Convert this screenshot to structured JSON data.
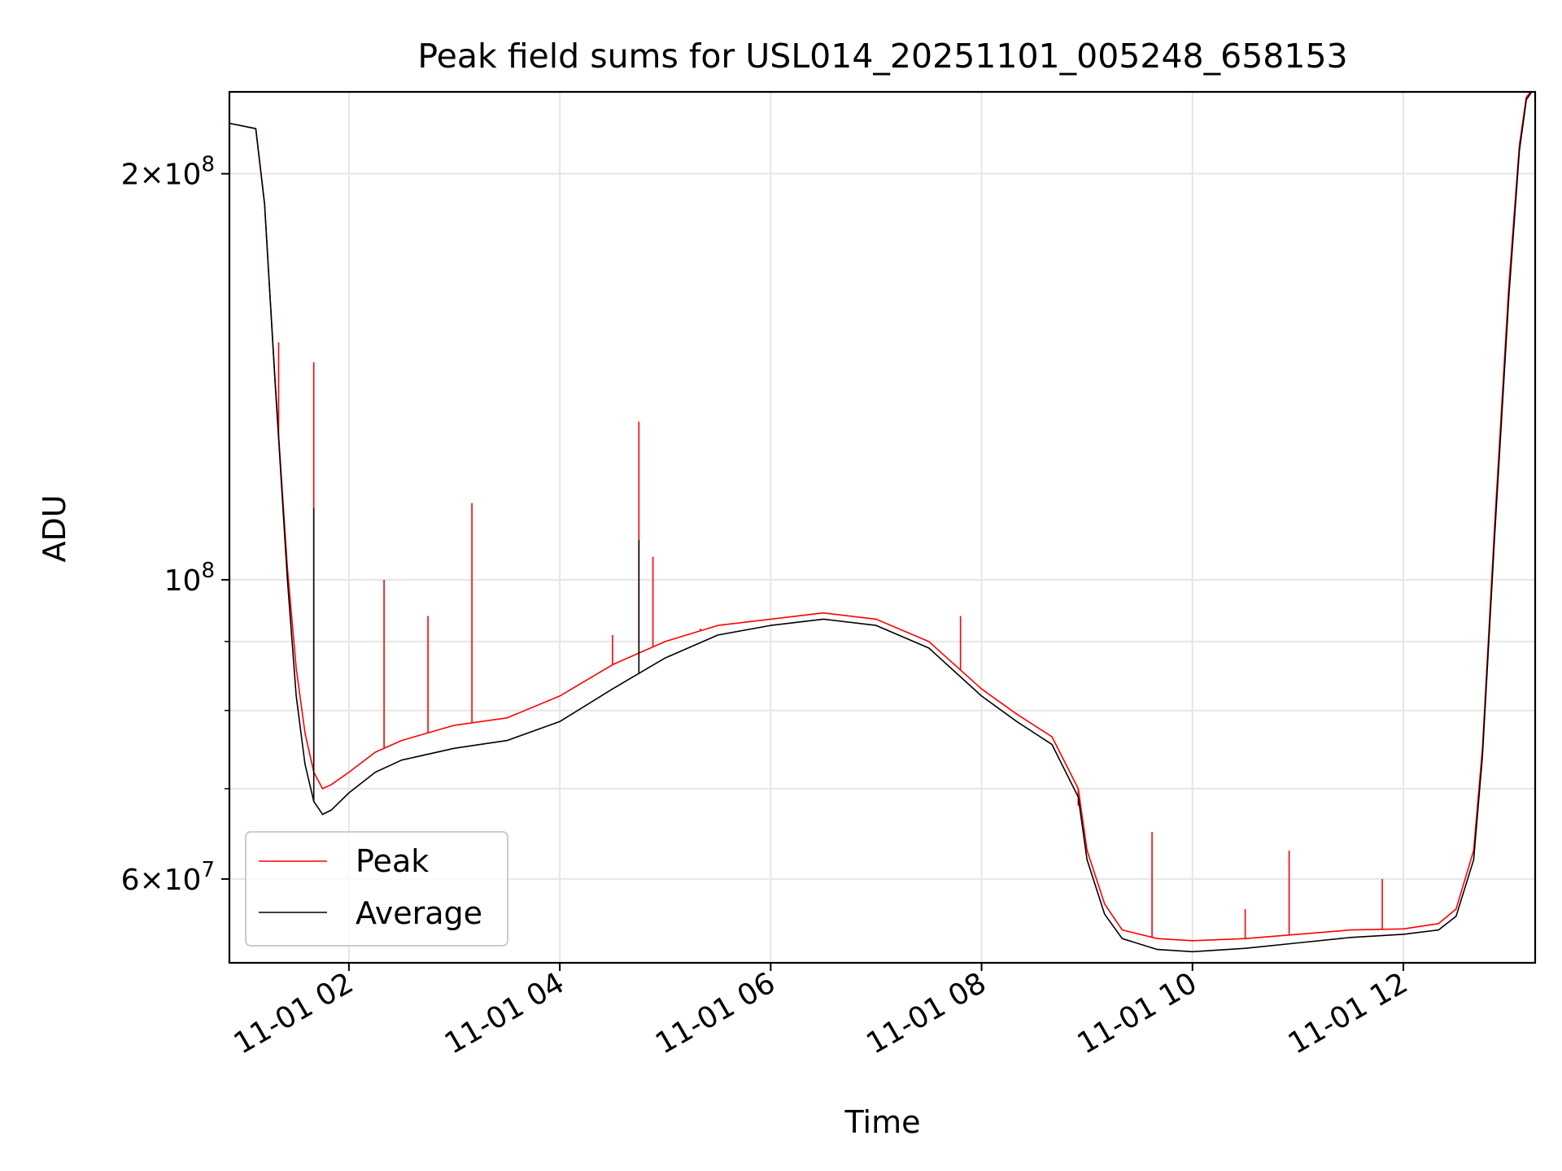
{
  "chart_data": {
    "type": "line",
    "title": "Peak field sums for USL014_20251101_005248_658153",
    "xlabel": "Time",
    "ylabel": "ADU",
    "y_scale": "log",
    "xlim": [
      "2025-11-01 00:52",
      "2025-11-01 13:15"
    ],
    "ylim": [
      52000000,
      230000000
    ],
    "x_ticks": [
      "11-01 02",
      "11-01 04",
      "11-01 06",
      "11-01 08",
      "11-01 10",
      "11-01 12"
    ],
    "x_tick_times": [
      "2025-11-01 02:00",
      "2025-11-01 04:00",
      "2025-11-01 06:00",
      "2025-11-01 08:00",
      "2025-11-01 10:00",
      "2025-11-01 12:00"
    ],
    "y_major_ticks": [
      {
        "value": 60000000,
        "mantissa": "6",
        "exponent": "7"
      },
      {
        "value": 100000000,
        "mantissa": "",
        "exponent": "8"
      },
      {
        "value": 200000000,
        "mantissa": "2",
        "exponent": "8"
      }
    ],
    "y_minor_ticks": [
      70000000,
      80000000,
      90000000
    ],
    "grid": true,
    "legend_position": "lower-left",
    "series": [
      {
        "name": "Peak",
        "color": "#ff0000",
        "x": [
          "00:52",
          "01:07",
          "01:12",
          "01:18",
          "01:25",
          "01:30",
          "01:35",
          "01:40",
          "01:45",
          "01:50",
          "02:00",
          "02:15",
          "02:30",
          "03:00",
          "03:30",
          "04:00",
          "04:30",
          "05:00",
          "05:30",
          "06:00",
          "06:30",
          "07:00",
          "07:30",
          "08:00",
          "08:20",
          "08:40",
          "08:55",
          "09:00",
          "09:10",
          "09:20",
          "09:40",
          "10:00",
          "10:30",
          "11:00",
          "11:30",
          "12:00",
          "12:20",
          "12:30",
          "12:40",
          "12:45",
          "12:52",
          "13:00",
          "13:06",
          "13:10",
          "13:15"
        ],
        "y": [
          218000000,
          216000000,
          190000000,
          140000000,
          102000000,
          86000000,
          77000000,
          72000000,
          70000000,
          70500000,
          72000000,
          74500000,
          76000000,
          78000000,
          79000000,
          82000000,
          86500000,
          90000000,
          92500000,
          93500000,
          94500000,
          93500000,
          90000000,
          83000000,
          79500000,
          76500000,
          70000000,
          63000000,
          57500000,
          55000000,
          54200000,
          54000000,
          54200000,
          54600000,
          55000000,
          55100000,
          55600000,
          57000000,
          63000000,
          75000000,
          110000000,
          165000000,
          210000000,
          228000000,
          232000000
        ],
        "spikes": [
          {
            "x": "01:20",
            "y": 150000000
          },
          {
            "x": "01:40",
            "y": 145000000
          },
          {
            "x": "02:20",
            "y": 100000000
          },
          {
            "x": "02:45",
            "y": 94000000
          },
          {
            "x": "03:10",
            "y": 114000000
          },
          {
            "x": "04:30",
            "y": 91000000
          },
          {
            "x": "04:45",
            "y": 131000000
          },
          {
            "x": "04:53",
            "y": 104000000
          },
          {
            "x": "05:20",
            "y": 92000000
          },
          {
            "x": "07:48",
            "y": 94000000
          },
          {
            "x": "08:55",
            "y": 68000000
          },
          {
            "x": "09:37",
            "y": 65000000
          },
          {
            "x": "10:30",
            "y": 57000000
          },
          {
            "x": "10:55",
            "y": 63000000
          },
          {
            "x": "11:48",
            "y": 60000000
          }
        ]
      },
      {
        "name": "Average",
        "color": "#000000",
        "x": [
          "00:52",
          "01:07",
          "01:12",
          "01:18",
          "01:25",
          "01:30",
          "01:35",
          "01:40",
          "01:45",
          "01:50",
          "02:00",
          "02:15",
          "02:30",
          "03:00",
          "03:30",
          "04:00",
          "04:30",
          "05:00",
          "05:30",
          "06:00",
          "06:30",
          "07:00",
          "07:30",
          "08:00",
          "08:20",
          "08:40",
          "08:55",
          "09:00",
          "09:10",
          "09:20",
          "09:40",
          "10:00",
          "10:30",
          "11:00",
          "11:30",
          "12:00",
          "12:20",
          "12:30",
          "12:40",
          "12:45",
          "12:52",
          "13:00",
          "13:06",
          "13:10",
          "13:15"
        ],
        "y": [
          218000000,
          216000000,
          190000000,
          140000000,
          100000000,
          82000000,
          73000000,
          68500000,
          67000000,
          67500000,
          69500000,
          72000000,
          73500000,
          75000000,
          76000000,
          78500000,
          83000000,
          87500000,
          91000000,
          92500000,
          93500000,
          92500000,
          89000000,
          82000000,
          78500000,
          75500000,
          69000000,
          62000000,
          56500000,
          54200000,
          53200000,
          53000000,
          53300000,
          53800000,
          54300000,
          54600000,
          55000000,
          56300000,
          62000000,
          74000000,
          108000000,
          162000000,
          208000000,
          227000000,
          232000000
        ],
        "spikes": [
          {
            "x": "01:40",
            "y": 113000000
          },
          {
            "x": "04:45",
            "y": 107000000
          }
        ]
      }
    ]
  }
}
